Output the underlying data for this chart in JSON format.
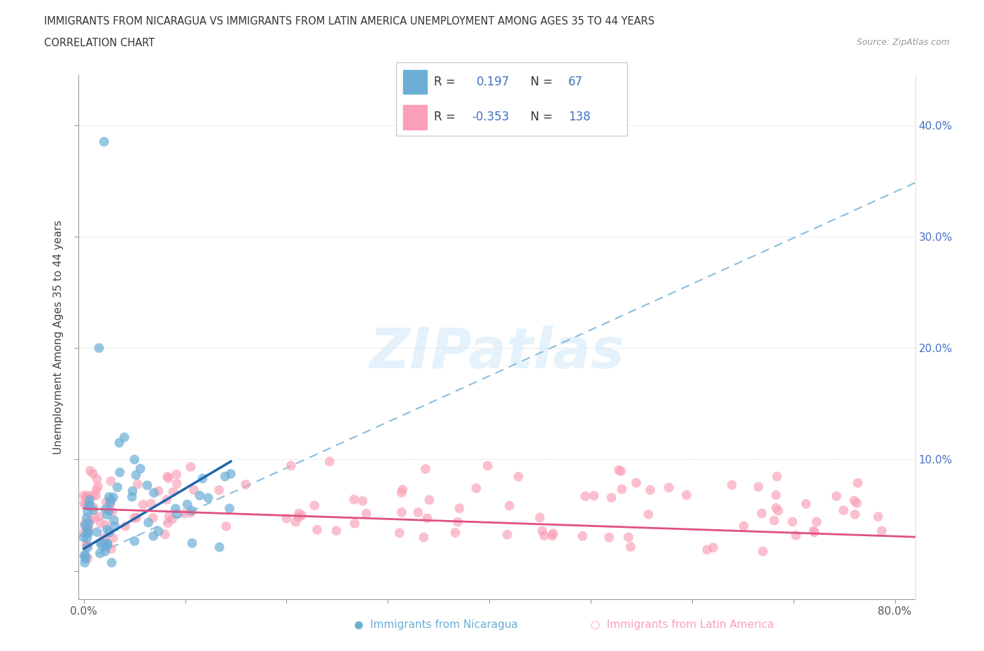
{
  "title_line1": "IMMIGRANTS FROM NICARAGUA VS IMMIGRANTS FROM LATIN AMERICA UNEMPLOYMENT AMONG AGES 35 TO 44 YEARS",
  "title_line2": "CORRELATION CHART",
  "source_text": "Source: ZipAtlas.com",
  "ylabel": "Unemployment Among Ages 35 to 44 years",
  "xlim": [
    -0.005,
    0.82
  ],
  "ylim": [
    -0.025,
    0.445
  ],
  "x_ticks": [
    0.0,
    0.1,
    0.2,
    0.3,
    0.4,
    0.5,
    0.6,
    0.7,
    0.8
  ],
  "x_tick_labels": [
    "0.0%",
    "",
    "",
    "",
    "",
    "",
    "",
    "",
    "80.0%"
  ],
  "y_ticks": [
    0.0,
    0.1,
    0.2,
    0.3,
    0.4
  ],
  "y_tick_labels_left": [
    "",
    "",
    "",
    "",
    ""
  ],
  "y_tick_labels_right": [
    "",
    "10.0%",
    "20.0%",
    "30.0%",
    "40.0%"
  ],
  "nicaragua_color": "#6baed6",
  "latin_america_color": "#fa9fb5",
  "nicaragua_line_color": "#2166ac",
  "latin_america_line_color": "#e05080",
  "dashed_line_color": "#6baed6",
  "nicaragua_R": 0.197,
  "nicaragua_N": 67,
  "latin_america_R": -0.353,
  "latin_america_N": 138,
  "watermark_color": "#d0e8f8",
  "background_color": "#ffffff",
  "grid_color": "#d0d0d0",
  "legend_text_color_label": "#333333",
  "legend_text_color_value": "#4472c4",
  "right_axis_color": "#4472c4",
  "title_color": "#333333",
  "source_color": "#999999",
  "bottom_legend_nic_color": "#6baed6",
  "bottom_legend_la_color": "#fa9fb5"
}
